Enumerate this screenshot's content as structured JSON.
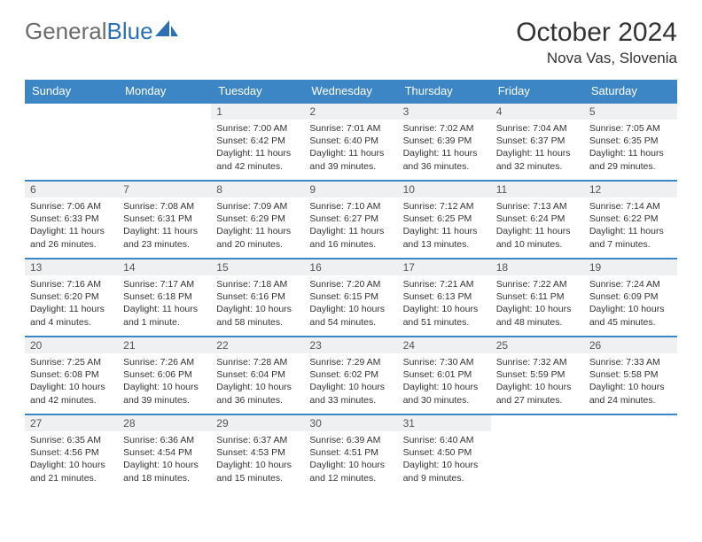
{
  "brand": {
    "part1": "General",
    "part2": "Blue",
    "text_color": "#6b6b6b",
    "accent_color": "#2d6fb3"
  },
  "title": "October 2024",
  "location": "Nova Vas, Slovenia",
  "colors": {
    "header_bg": "#3d86c6",
    "header_text": "#ffffff",
    "row_border": "#3d86c6",
    "daynum_bg": "#eef0f2",
    "page_bg": "#ffffff",
    "text": "#333333"
  },
  "typography": {
    "title_fontsize": 30,
    "location_fontsize": 17,
    "dayheader_fontsize": 13,
    "daytext_fontsize": 10.5
  },
  "calendar": {
    "type": "table",
    "columns": [
      "Sunday",
      "Monday",
      "Tuesday",
      "Wednesday",
      "Thursday",
      "Friday",
      "Saturday"
    ],
    "weeks": [
      [
        null,
        null,
        {
          "n": "1",
          "sunrise": "7:00 AM",
          "sunset": "6:42 PM",
          "daylight": "11 hours and 42 minutes."
        },
        {
          "n": "2",
          "sunrise": "7:01 AM",
          "sunset": "6:40 PM",
          "daylight": "11 hours and 39 minutes."
        },
        {
          "n": "3",
          "sunrise": "7:02 AM",
          "sunset": "6:39 PM",
          "daylight": "11 hours and 36 minutes."
        },
        {
          "n": "4",
          "sunrise": "7:04 AM",
          "sunset": "6:37 PM",
          "daylight": "11 hours and 32 minutes."
        },
        {
          "n": "5",
          "sunrise": "7:05 AM",
          "sunset": "6:35 PM",
          "daylight": "11 hours and 29 minutes."
        }
      ],
      [
        {
          "n": "6",
          "sunrise": "7:06 AM",
          "sunset": "6:33 PM",
          "daylight": "11 hours and 26 minutes."
        },
        {
          "n": "7",
          "sunrise": "7:08 AM",
          "sunset": "6:31 PM",
          "daylight": "11 hours and 23 minutes."
        },
        {
          "n": "8",
          "sunrise": "7:09 AM",
          "sunset": "6:29 PM",
          "daylight": "11 hours and 20 minutes."
        },
        {
          "n": "9",
          "sunrise": "7:10 AM",
          "sunset": "6:27 PM",
          "daylight": "11 hours and 16 minutes."
        },
        {
          "n": "10",
          "sunrise": "7:12 AM",
          "sunset": "6:25 PM",
          "daylight": "11 hours and 13 minutes."
        },
        {
          "n": "11",
          "sunrise": "7:13 AM",
          "sunset": "6:24 PM",
          "daylight": "11 hours and 10 minutes."
        },
        {
          "n": "12",
          "sunrise": "7:14 AM",
          "sunset": "6:22 PM",
          "daylight": "11 hours and 7 minutes."
        }
      ],
      [
        {
          "n": "13",
          "sunrise": "7:16 AM",
          "sunset": "6:20 PM",
          "daylight": "11 hours and 4 minutes."
        },
        {
          "n": "14",
          "sunrise": "7:17 AM",
          "sunset": "6:18 PM",
          "daylight": "11 hours and 1 minute."
        },
        {
          "n": "15",
          "sunrise": "7:18 AM",
          "sunset": "6:16 PM",
          "daylight": "10 hours and 58 minutes."
        },
        {
          "n": "16",
          "sunrise": "7:20 AM",
          "sunset": "6:15 PM",
          "daylight": "10 hours and 54 minutes."
        },
        {
          "n": "17",
          "sunrise": "7:21 AM",
          "sunset": "6:13 PM",
          "daylight": "10 hours and 51 minutes."
        },
        {
          "n": "18",
          "sunrise": "7:22 AM",
          "sunset": "6:11 PM",
          "daylight": "10 hours and 48 minutes."
        },
        {
          "n": "19",
          "sunrise": "7:24 AM",
          "sunset": "6:09 PM",
          "daylight": "10 hours and 45 minutes."
        }
      ],
      [
        {
          "n": "20",
          "sunrise": "7:25 AM",
          "sunset": "6:08 PM",
          "daylight": "10 hours and 42 minutes."
        },
        {
          "n": "21",
          "sunrise": "7:26 AM",
          "sunset": "6:06 PM",
          "daylight": "10 hours and 39 minutes."
        },
        {
          "n": "22",
          "sunrise": "7:28 AM",
          "sunset": "6:04 PM",
          "daylight": "10 hours and 36 minutes."
        },
        {
          "n": "23",
          "sunrise": "7:29 AM",
          "sunset": "6:02 PM",
          "daylight": "10 hours and 33 minutes."
        },
        {
          "n": "24",
          "sunrise": "7:30 AM",
          "sunset": "6:01 PM",
          "daylight": "10 hours and 30 minutes."
        },
        {
          "n": "25",
          "sunrise": "7:32 AM",
          "sunset": "5:59 PM",
          "daylight": "10 hours and 27 minutes."
        },
        {
          "n": "26",
          "sunrise": "7:33 AM",
          "sunset": "5:58 PM",
          "daylight": "10 hours and 24 minutes."
        }
      ],
      [
        {
          "n": "27",
          "sunrise": "6:35 AM",
          "sunset": "4:56 PM",
          "daylight": "10 hours and 21 minutes."
        },
        {
          "n": "28",
          "sunrise": "6:36 AM",
          "sunset": "4:54 PM",
          "daylight": "10 hours and 18 minutes."
        },
        {
          "n": "29",
          "sunrise": "6:37 AM",
          "sunset": "4:53 PM",
          "daylight": "10 hours and 15 minutes."
        },
        {
          "n": "30",
          "sunrise": "6:39 AM",
          "sunset": "4:51 PM",
          "daylight": "10 hours and 12 minutes."
        },
        {
          "n": "31",
          "sunrise": "6:40 AM",
          "sunset": "4:50 PM",
          "daylight": "10 hours and 9 minutes."
        },
        null,
        null
      ]
    ],
    "labels": {
      "sunrise": "Sunrise:",
      "sunset": "Sunset:",
      "daylight": "Daylight:"
    }
  }
}
